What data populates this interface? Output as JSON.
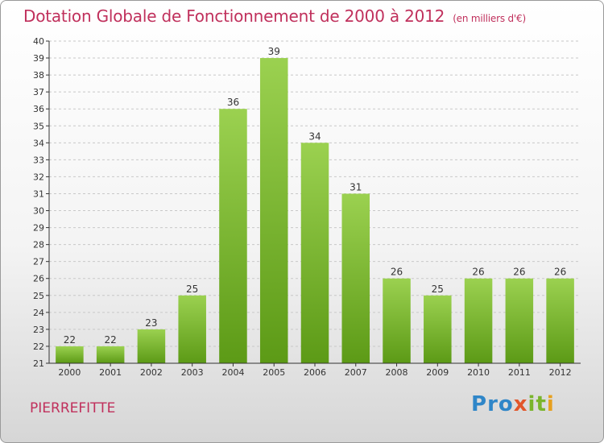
{
  "header": {
    "title": "Dotation Globale de Fonctionnement de 2000 à 2012",
    "unit_note": "(en milliers d'€)"
  },
  "footer": {
    "commune": "PIERREFITTE",
    "logo": [
      "P",
      "r",
      "o",
      "x",
      "i",
      "t",
      "i"
    ]
  },
  "colors": {
    "title": "#c0305c",
    "bar_top": "#9bd150",
    "bar_bottom": "#5c9a16",
    "grid": "#c8c8c8"
  },
  "chart_data": {
    "type": "bar",
    "title": "Dotation Globale de Fonctionnement de 2000 à 2012",
    "xlabel": "",
    "ylabel": "",
    "categories": [
      "2000",
      "2001",
      "2002",
      "2003",
      "2004",
      "2005",
      "2006",
      "2007",
      "2008",
      "2009",
      "2010",
      "2011",
      "2012"
    ],
    "values": [
      22,
      22,
      23,
      25,
      36,
      39,
      34,
      31,
      26,
      25,
      26,
      26,
      26
    ],
    "ylim": [
      21,
      40
    ],
    "ytick_step": 1,
    "grid": true,
    "data_labels": true
  }
}
